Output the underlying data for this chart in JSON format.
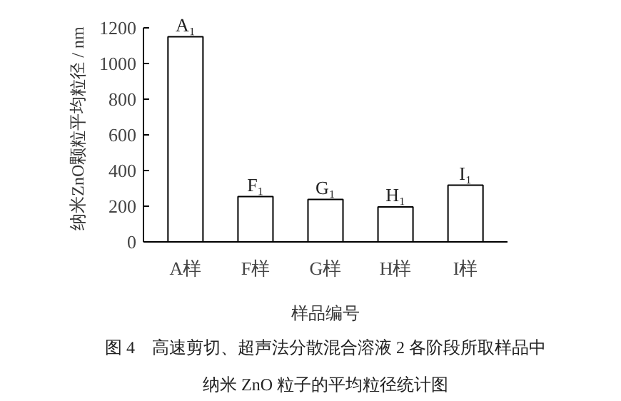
{
  "chart_data": {
    "type": "bar",
    "categories": [
      "A样",
      "F样",
      "G样",
      "H样",
      "I样"
    ],
    "values": [
      1150,
      254,
      238,
      196,
      318
    ],
    "value_labels": [
      "A₁",
      "F₁",
      "G₁",
      "H₁",
      "I₁"
    ],
    "color": "#ffffff",
    "xlabel": "样品编号",
    "ylabel": "纳米ZnO颗粒平均粒径 / nm",
    "ylim": [
      0,
      1200
    ],
    "yticks": [
      0,
      200,
      400,
      600,
      800,
      1000,
      1200
    ],
    "grid": false,
    "annotations": [
      "图 4　高速剪切、超声法分散混合溶液 2 各阶段所取样品中",
      "纳米 ZnO 粒子的平均粒径统计图"
    ]
  }
}
